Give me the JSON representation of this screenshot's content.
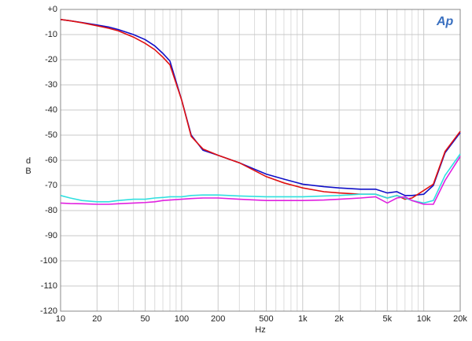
{
  "chart_data": {
    "type": "line",
    "logo": "Ap",
    "ylabel": "d\nB",
    "xlabel": "Hz",
    "x": [
      10,
      12,
      15,
      20,
      25,
      30,
      40,
      50,
      60,
      70,
      80,
      100,
      120,
      150,
      200,
      300,
      500,
      700,
      1000,
      1500,
      2000,
      3000,
      4000,
      5000,
      6000,
      7000,
      8000,
      10000,
      12000,
      15000,
      20000
    ],
    "series": [
      {
        "color": "#1010c8",
        "values": [
          -4,
          -4.5,
          -5.2,
          -6.2,
          -7,
          -8,
          -10,
          -12,
          -14.5,
          -17.5,
          -20.5,
          -36,
          -50,
          -56,
          -58,
          -61,
          -65.5,
          -67.5,
          -69.5,
          -70.5,
          -71,
          -71.5,
          -71.5,
          -73,
          -72.5,
          -74,
          -74,
          -73.5,
          -70,
          -57,
          -49
        ]
      },
      {
        "color": "#e01010",
        "values": [
          -4,
          -4.5,
          -5.3,
          -6.5,
          -7.5,
          -8.5,
          -11,
          -13.5,
          -16,
          -19,
          -22,
          -36,
          -50.5,
          -55.5,
          -58,
          -61,
          -66.5,
          -69,
          -71,
          -72.5,
          -73,
          -73.5,
          -73.5,
          -75,
          -74,
          -75.5,
          -75,
          -72,
          -69.5,
          -56.5,
          -48.5
        ]
      },
      {
        "color": "#30e0e0",
        "values": [
          -74,
          -75,
          -76,
          -76.5,
          -76.5,
          -76,
          -75.5,
          -75.5,
          -75,
          -74.8,
          -74.5,
          -74.5,
          -74,
          -73.8,
          -73.8,
          -74.2,
          -74.5,
          -74.5,
          -74.5,
          -74.2,
          -74,
          -73.5,
          -73.5,
          -75,
          -74,
          -75,
          -76,
          -77,
          -76,
          -66,
          -57.5
        ]
      },
      {
        "color": "#e020e0",
        "values": [
          -77,
          -77.2,
          -77.3,
          -77.5,
          -77.5,
          -77.3,
          -77,
          -76.8,
          -76.5,
          -76,
          -75.8,
          -75.5,
          -75.2,
          -75,
          -75,
          -75.5,
          -76,
          -76,
          -76,
          -75.8,
          -75.5,
          -75,
          -74.5,
          -77,
          -75,
          -74.5,
          -76,
          -77.5,
          -77.5,
          -68,
          -58.5
        ]
      }
    ],
    "xlog": true,
    "xlim": [
      10,
      20000
    ],
    "xticks": [
      10,
      20,
      50,
      100,
      200,
      500,
      {
        "value": 1000,
        "label": "1k"
      },
      {
        "value": 2000,
        "label": "2k"
      },
      {
        "value": 5000,
        "label": "5k"
      },
      {
        "value": 10000,
        "label": "10k"
      },
      {
        "value": 20000,
        "label": "20k"
      }
    ],
    "xminor": [
      30,
      40,
      60,
      70,
      80,
      90,
      300,
      400,
      600,
      700,
      800,
      900,
      3000,
      4000,
      6000,
      7000,
      8000,
      9000
    ],
    "ylim": [
      -120,
      0
    ],
    "yticks": [
      {
        "value": 0,
        "label": "+0"
      },
      -10,
      -20,
      -30,
      -40,
      -50,
      -60,
      -70,
      -80,
      -90,
      -100,
      -110,
      -120
    ],
    "grid": true
  }
}
